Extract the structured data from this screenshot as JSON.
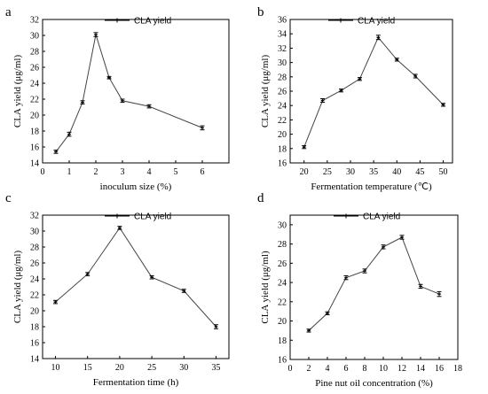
{
  "chart_data": [
    {
      "panel_label": "a",
      "type": "line",
      "xlabel": "inoculum size (%)",
      "ylabel": "CLA yield (μg/ml)",
      "xlim": [
        0,
        7
      ],
      "ylim": [
        14,
        32
      ],
      "xticks": [
        0,
        1,
        2,
        3,
        4,
        5,
        6
      ],
      "yticks": [
        14,
        16,
        18,
        20,
        22,
        24,
        26,
        28,
        30,
        32
      ],
      "legend_position": "top-right",
      "series": [
        {
          "name": "CLA yield",
          "x": [
            0.5,
            1,
            1.5,
            2,
            2.5,
            3,
            4,
            6
          ],
          "y": [
            15.4,
            17.6,
            21.6,
            30.1,
            24.7,
            21.8,
            21.1,
            18.4
          ],
          "err": [
            0.2,
            0.25,
            0.2,
            0.25,
            0.15,
            0.2,
            0.2,
            0.25
          ]
        }
      ]
    },
    {
      "panel_label": "b",
      "type": "line",
      "xlabel": "Fermentation temperature (℃)",
      "ylabel": "CLA yield (μg/ml)",
      "xlim": [
        17,
        52
      ],
      "ylim": [
        16,
        36
      ],
      "xticks": [
        20,
        25,
        30,
        35,
        40,
        45,
        50
      ],
      "yticks": [
        16,
        18,
        20,
        22,
        24,
        26,
        28,
        30,
        32,
        34,
        36
      ],
      "legend_position": "top-right",
      "series": [
        {
          "name": "CLA yield",
          "x": [
            20,
            24,
            28,
            32,
            36,
            40,
            44,
            50
          ],
          "y": [
            18.2,
            24.7,
            26.1,
            27.7,
            33.5,
            30.4,
            28.1,
            24.1
          ],
          "err": [
            0.2,
            0.25,
            0.2,
            0.2,
            0.3,
            0.2,
            0.25,
            0.2
          ]
        }
      ]
    },
    {
      "panel_label": "c",
      "type": "line",
      "xlabel": "Fermentation time (h)",
      "ylabel": "CLA yield (μg/ml)",
      "xlim": [
        8,
        37
      ],
      "ylim": [
        14,
        32
      ],
      "xticks": [
        10,
        15,
        20,
        25,
        30,
        35
      ],
      "yticks": [
        14,
        16,
        18,
        20,
        22,
        24,
        26,
        28,
        30,
        32
      ],
      "legend_position": "top-right",
      "series": [
        {
          "name": "CLA yield",
          "x": [
            10,
            15,
            20,
            25,
            30,
            35
          ],
          "y": [
            21.1,
            24.6,
            30.4,
            24.2,
            22.5,
            18.0
          ],
          "err": [
            0.2,
            0.2,
            0.2,
            0.2,
            0.2,
            0.25
          ]
        }
      ]
    },
    {
      "panel_label": "d",
      "type": "line",
      "xlabel": "Pine nut oil concentration (%)",
      "ylabel": "CLA yield (μg/ml)",
      "xlim": [
        0,
        18
      ],
      "ylim": [
        16,
        31
      ],
      "xticks": [
        0,
        2,
        4,
        6,
        8,
        10,
        12,
        14,
        16,
        18
      ],
      "yticks": [
        16,
        18,
        20,
        22,
        24,
        26,
        28,
        30
      ],
      "legend_position": "top-right",
      "series": [
        {
          "name": "CLA yield",
          "x": [
            2,
            4,
            6,
            8,
            10,
            12,
            14,
            16
          ],
          "y": [
            19.0,
            20.8,
            24.5,
            25.2,
            27.7,
            28.7,
            23.6,
            22.8
          ],
          "err": [
            0.15,
            0.15,
            0.2,
            0.2,
            0.2,
            0.2,
            0.2,
            0.25
          ]
        }
      ]
    }
  ]
}
